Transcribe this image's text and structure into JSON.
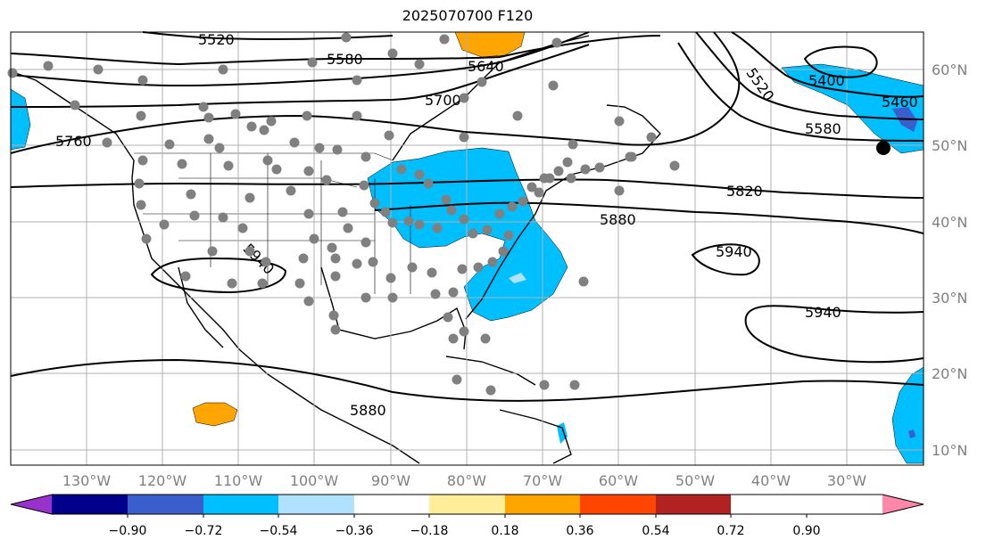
{
  "title": "2025070700 F120",
  "lat_ticks": [
    "60°N",
    "50°N",
    "40°N",
    "30°N",
    "20°N",
    "10°N"
  ],
  "lon_ticks": [
    "130°W",
    "120°W",
    "110°W",
    "100°W",
    "90°W",
    "80°W",
    "70°W",
    "60°W",
    "50°W",
    "40°W",
    "30°W"
  ],
  "contours": [
    {
      "label": "5520",
      "level": 5520
    },
    {
      "label": "5580",
      "level": 5580
    },
    {
      "label": "5640",
      "level": 5640
    },
    {
      "label": "5700",
      "level": 5700
    },
    {
      "label": "5760",
      "level": 5760
    },
    {
      "label": "5820",
      "level": 5820
    },
    {
      "label": "5880",
      "level": 5880
    },
    {
      "label": "5940",
      "level": 5940
    },
    {
      "label": "5400",
      "level": 5400
    },
    {
      "label": "5460",
      "level": 5460
    }
  ],
  "contour_labels": [
    "5520",
    "5580",
    "5640",
    "5700",
    "5760",
    "5820",
    "5880",
    "5940",
    "5940",
    "5940",
    "5880",
    "5400",
    "5460",
    "5520",
    "5580"
  ],
  "colorbar": {
    "ticks": [
      "−0.90",
      "−0.72",
      "−0.54",
      "−0.36",
      "−0.18",
      "0.18",
      "0.36",
      "0.54",
      "0.72",
      "0.90"
    ],
    "colors": [
      "#9932cc",
      "#00008b",
      "#3a5fcd",
      "#00bfff",
      "#b0e2ff",
      "#ffffff",
      "#ffee99",
      "#ffa500",
      "#ff4500",
      "#b22222",
      "#ff88aa"
    ]
  },
  "colors": {
    "positive_anomaly": "#ffa500",
    "negative_anomaly": "#00bfff",
    "strong_negative": "#3a5fcd",
    "station_dot": "#808080",
    "grid": "#b0b0b0"
  }
}
